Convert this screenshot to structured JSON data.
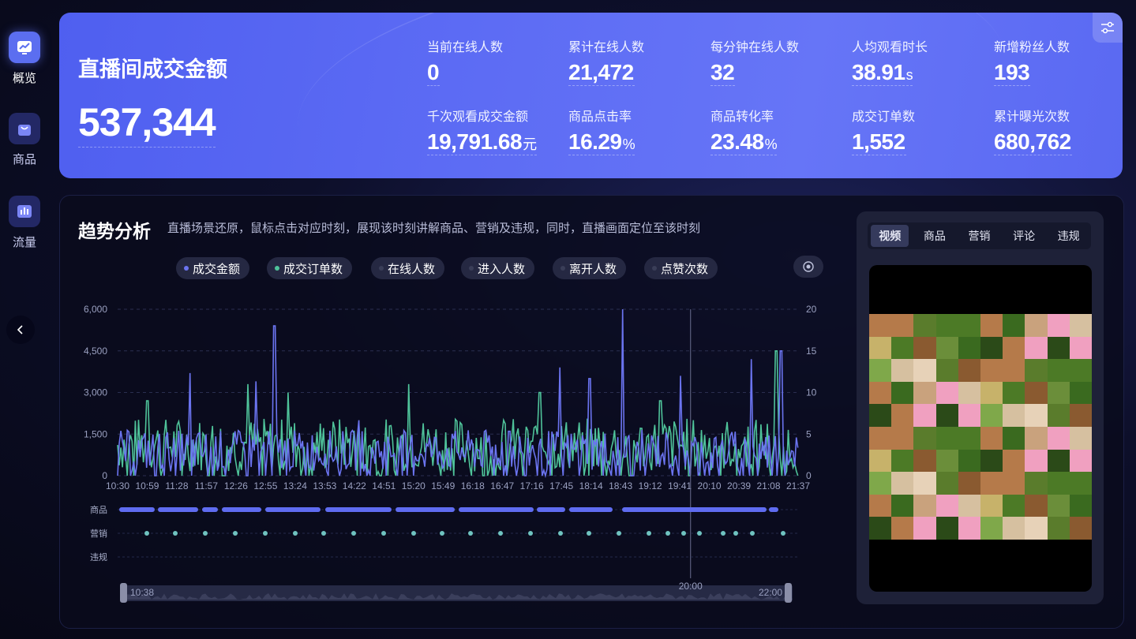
{
  "sidebar": {
    "items": [
      {
        "label": "概览",
        "icon": "trend-chart-icon",
        "active": true
      },
      {
        "label": "商品",
        "icon": "shopping-bag-icon",
        "active": false
      },
      {
        "label": "流量",
        "icon": "bar-chart-icon",
        "active": false
      }
    ]
  },
  "banner": {
    "title": "直播间成交金额",
    "value": "537,344",
    "metrics": [
      {
        "label": "当前在线人数",
        "value": "0",
        "unit": ""
      },
      {
        "label": "累计在线人数",
        "value": "21,472",
        "unit": ""
      },
      {
        "label": "每分钟在线人数",
        "value": "32",
        "unit": ""
      },
      {
        "label": "人均观看时长",
        "value": "38.91",
        "unit": "s"
      },
      {
        "label": "新增粉丝人数",
        "value": "193",
        "unit": ""
      },
      {
        "label": "千次观看成交金额",
        "value": "19,791.68",
        "unit": "元"
      },
      {
        "label": "商品点击率",
        "value": "16.29",
        "unit": "%"
      },
      {
        "label": "商品转化率",
        "value": "23.48",
        "unit": "%"
      },
      {
        "label": "成交订单数",
        "value": "1,552",
        "unit": ""
      },
      {
        "label": "累计曝光次数",
        "value": "680,762",
        "unit": ""
      }
    ]
  },
  "trend": {
    "title": "趋势分析",
    "description": "直播场景还原，鼠标点击对应时刻，展现该时刻讲解商品、营销及违规，同时，直播画面定位至该时刻",
    "legend": [
      {
        "label": "成交金额",
        "color": "#6b74f0",
        "active": true
      },
      {
        "label": "成交订单数",
        "color": "#4fc39a",
        "active": true
      },
      {
        "label": "在线人数",
        "color": "#3a3e58",
        "active": false
      },
      {
        "label": "进入人数",
        "color": "#3a3e58",
        "active": false
      },
      {
        "label": "离开人数",
        "color": "#3a3e58",
        "active": false
      },
      {
        "label": "点赞次数",
        "color": "#3a3e58",
        "active": false
      }
    ],
    "lanes": [
      "商品",
      "营销",
      "违规"
    ],
    "range": {
      "start": "10:38",
      "end": "22:00",
      "cursor": "20:00"
    }
  },
  "chart_data": {
    "type": "line",
    "x": [
      "10:30",
      "10:59",
      "11:28",
      "11:57",
      "12:26",
      "12:55",
      "13:24",
      "13:53",
      "14:22",
      "14:51",
      "15:20",
      "15:49",
      "16:18",
      "16:47",
      "17:16",
      "17:45",
      "18:14",
      "18:43",
      "19:12",
      "19:41",
      "20:10",
      "20:39",
      "21:08",
      "21:37"
    ],
    "y_left": {
      "ticks": [
        "0",
        "1,500",
        "3,000",
        "4,500",
        "6,000"
      ],
      "range": [
        0,
        6000
      ]
    },
    "y_right": {
      "ticks": [
        "0",
        "5",
        "10",
        "15",
        "20"
      ],
      "range": [
        0,
        20
      ]
    },
    "series": [
      {
        "name": "成交金额",
        "axis": "left",
        "color": "#6b74f0",
        "peaks": [
          [
            "11:42",
            3700
          ],
          [
            "12:48",
            3400
          ],
          [
            "13:06",
            5400
          ],
          [
            "14:30",
            2000
          ],
          [
            "17:00",
            1600
          ],
          [
            "17:50",
            3900
          ],
          [
            "18:20",
            3500
          ],
          [
            "18:52",
            6000
          ],
          [
            "19:50",
            3600
          ],
          [
            "21:00",
            4200
          ],
          [
            "21:30",
            4500
          ]
        ]
      },
      {
        "name": "成交订单数",
        "axis": "right",
        "color": "#4fc39a",
        "peaks": [
          [
            "11:00",
            9
          ],
          [
            "12:40",
            11
          ],
          [
            "13:20",
            10
          ],
          [
            "15:20",
            11
          ],
          [
            "17:30",
            10
          ],
          [
            "19:30",
            9
          ],
          [
            "21:25",
            15
          ]
        ]
      }
    ],
    "cursor_x": "20:00"
  },
  "video": {
    "tabs": [
      "视频",
      "商品",
      "营销",
      "评论",
      "违规"
    ],
    "active_tab": "视频"
  }
}
